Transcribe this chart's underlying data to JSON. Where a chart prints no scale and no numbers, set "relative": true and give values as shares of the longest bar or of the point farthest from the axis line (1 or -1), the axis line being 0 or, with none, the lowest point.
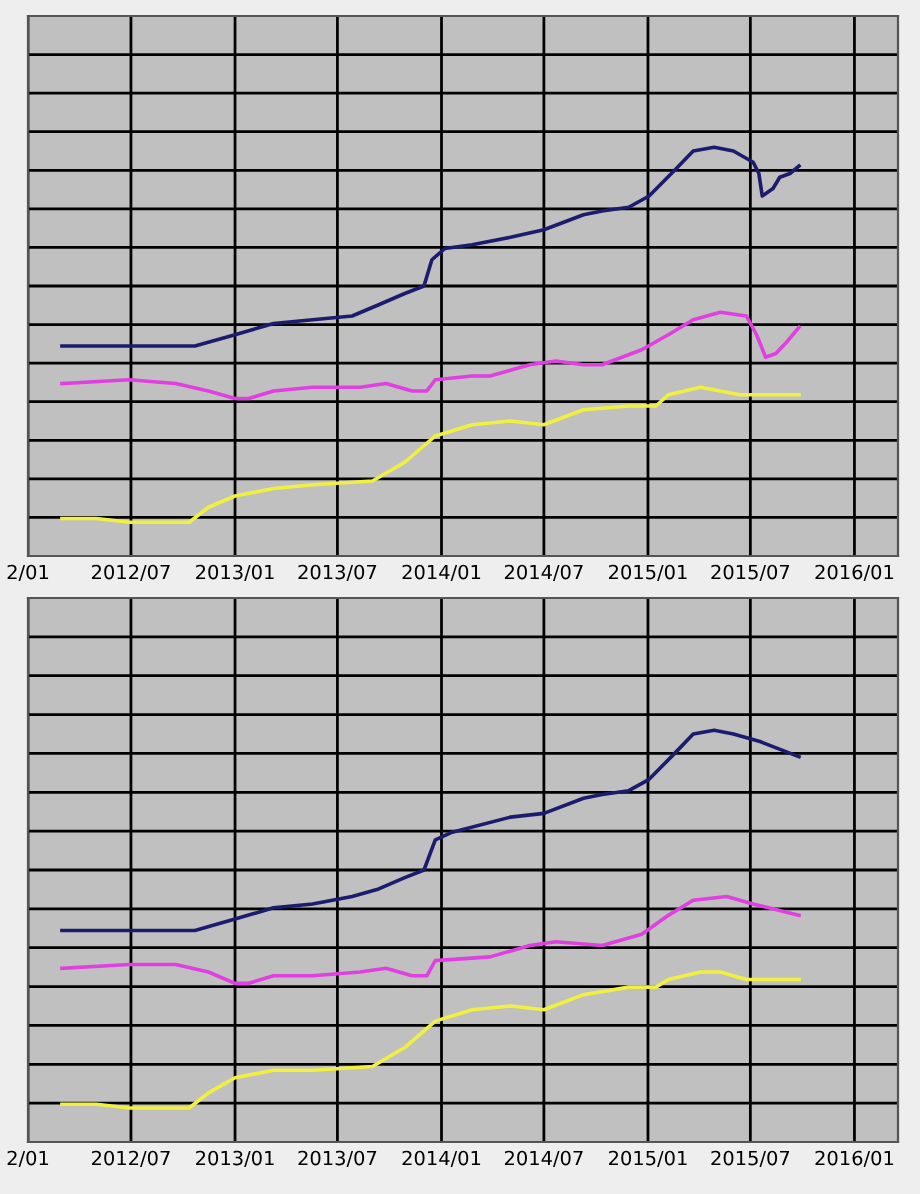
{
  "chart_data": [
    {
      "type": "line",
      "relative": true,
      "grid": true,
      "xlim": [
        "2012-01-01",
        "2016-03-18"
      ],
      "xticks": [
        {
          "value": "2012-01-01",
          "label": "2/01"
        },
        {
          "value": "2012-07-01",
          "label": "2012/07"
        },
        {
          "value": "2013-01-01",
          "label": "2013/01"
        },
        {
          "value": "2013-07-01",
          "label": "2013/07"
        },
        {
          "value": "2014-01-01",
          "label": "2014/01"
        },
        {
          "value": "2014-07-01",
          "label": "2014/07"
        },
        {
          "value": "2015-01-01",
          "label": "2015/01"
        },
        {
          "value": "2015-07-01",
          "label": "2015/07"
        },
        {
          "value": "2016-01-01",
          "label": "2016/01"
        }
      ],
      "series": [
        {
          "color": "#1c1c6e",
          "x": [
            "2012-03-01",
            "2012-10-22",
            "2013-01-01",
            "2013-03-10",
            "2013-05-18",
            "2013-07-27",
            "2013-09-12",
            "2013-10-28",
            "2013-12-01",
            "2013-12-15",
            "2014-01-07",
            "2014-02-24",
            "2014-05-03",
            "2014-07-01",
            "2014-09-09",
            "2014-10-12",
            "2014-11-28",
            "2015-01-03",
            "2015-02-18",
            "2015-03-22",
            "2015-04-28",
            "2015-06-01",
            "2015-07-06",
            "2015-07-16",
            "2015-07-22",
            "2015-08-10",
            "2015-08-22",
            "2015-09-09",
            "2015-09-25"
          ],
          "values": [
            0.47,
            0.47,
            0.5,
            0.53,
            0.54,
            0.55,
            0.58,
            0.61,
            0.63,
            0.7,
            0.73,
            0.74,
            0.76,
            0.78,
            0.82,
            0.83,
            0.84,
            0.87,
            0.94,
            0.99,
            1.0,
            0.99,
            0.96,
            0.93,
            0.87,
            0.89,
            0.92,
            0.93,
            0.95
          ]
        },
        {
          "color": "#e040e0",
          "x": [
            "2012-03-01",
            "2012-06-28",
            "2012-09-18",
            "2012-11-15",
            "2013-01-01",
            "2013-01-25",
            "2013-03-10",
            "2013-05-18",
            "2013-08-10",
            "2013-09-25",
            "2013-11-10",
            "2013-12-06",
            "2013-12-21",
            "2014-02-24",
            "2014-03-28",
            "2014-06-06",
            "2014-07-22",
            "2014-09-09",
            "2014-10-12",
            "2014-12-21",
            "2015-02-06",
            "2015-03-22",
            "2015-05-09",
            "2015-06-24",
            "2015-07-12",
            "2015-07-28",
            "2015-08-15",
            "2015-09-03",
            "2015-09-25"
          ],
          "values": [
            0.37,
            0.38,
            0.37,
            0.35,
            0.33,
            0.33,
            0.35,
            0.36,
            0.36,
            0.37,
            0.35,
            0.35,
            0.38,
            0.39,
            0.39,
            0.42,
            0.43,
            0.42,
            0.42,
            0.46,
            0.5,
            0.54,
            0.56,
            0.55,
            0.5,
            0.44,
            0.45,
            0.48,
            0.52
          ]
        },
        {
          "color": "#f0f040",
          "x": [
            "2012-03-01",
            "2012-05-01",
            "2012-06-28",
            "2012-10-12",
            "2012-11-15",
            "2013-01-01",
            "2013-03-10",
            "2013-05-18",
            "2013-09-01",
            "2013-10-28",
            "2013-12-21",
            "2014-02-24",
            "2014-05-03",
            "2014-07-01",
            "2014-09-09",
            "2014-11-28",
            "2015-01-15",
            "2015-02-06",
            "2015-04-04",
            "2015-05-09",
            "2015-06-12",
            "2015-07-28",
            "2015-09-25"
          ],
          "values": [
            0.01,
            0.01,
            0.0,
            0.0,
            0.04,
            0.07,
            0.09,
            0.1,
            0.11,
            0.16,
            0.23,
            0.26,
            0.27,
            0.26,
            0.3,
            0.31,
            0.31,
            0.34,
            0.36,
            0.35,
            0.34,
            0.34,
            0.34
          ]
        }
      ]
    },
    {
      "type": "line",
      "relative": true,
      "grid": true,
      "xlim": [
        "2012-01-01",
        "2016-03-18"
      ],
      "xticks": [
        {
          "value": "2012-01-01",
          "label": "2/01"
        },
        {
          "value": "2012-07-01",
          "label": "2012/07"
        },
        {
          "value": "2013-01-01",
          "label": "2013/01"
        },
        {
          "value": "2013-07-01",
          "label": "2013/07"
        },
        {
          "value": "2014-01-01",
          "label": "2014/01"
        },
        {
          "value": "2014-07-01",
          "label": "2014/07"
        },
        {
          "value": "2015-01-01",
          "label": "2015/01"
        },
        {
          "value": "2015-07-01",
          "label": "2015/07"
        },
        {
          "value": "2016-01-01",
          "label": "2016/01"
        }
      ],
      "series": [
        {
          "color": "#1c1c6e",
          "x": [
            "2012-03-01",
            "2012-10-22",
            "2013-01-01",
            "2013-03-10",
            "2013-05-18",
            "2013-07-27",
            "2013-09-12",
            "2013-10-28",
            "2013-12-01",
            "2013-12-21",
            "2014-01-20",
            "2014-05-03",
            "2014-07-01",
            "2014-09-09",
            "2014-10-12",
            "2014-11-28",
            "2015-01-03",
            "2015-02-18",
            "2015-03-22",
            "2015-04-28",
            "2015-06-01",
            "2015-07-18",
            "2015-09-25"
          ],
          "values": [
            0.47,
            0.47,
            0.5,
            0.53,
            0.54,
            0.56,
            0.58,
            0.61,
            0.63,
            0.71,
            0.73,
            0.77,
            0.78,
            0.82,
            0.83,
            0.84,
            0.87,
            0.94,
            0.99,
            1.0,
            0.99,
            0.97,
            0.93
          ]
        },
        {
          "color": "#e040e0",
          "x": [
            "2012-03-01",
            "2012-06-28",
            "2012-09-18",
            "2012-11-15",
            "2013-01-01",
            "2013-01-25",
            "2013-03-10",
            "2013-05-18",
            "2013-08-10",
            "2013-09-25",
            "2013-11-10",
            "2013-12-06",
            "2013-12-21",
            "2014-03-28",
            "2014-06-06",
            "2014-07-22",
            "2014-10-12",
            "2014-12-21",
            "2015-02-06",
            "2015-03-22",
            "2015-05-20",
            "2015-07-06",
            "2015-09-25"
          ],
          "values": [
            0.37,
            0.38,
            0.38,
            0.36,
            0.33,
            0.33,
            0.35,
            0.35,
            0.36,
            0.37,
            0.35,
            0.35,
            0.39,
            0.4,
            0.43,
            0.44,
            0.43,
            0.46,
            0.51,
            0.55,
            0.56,
            0.54,
            0.51
          ]
        },
        {
          "color": "#f0f040",
          "x": [
            "2012-03-01",
            "2012-05-01",
            "2012-06-28",
            "2012-10-12",
            "2012-11-15",
            "2013-01-01",
            "2013-03-10",
            "2013-05-18",
            "2013-09-01",
            "2013-10-28",
            "2013-12-21",
            "2014-02-24",
            "2014-05-03",
            "2014-07-01",
            "2014-09-09",
            "2014-11-28",
            "2015-01-15",
            "2015-02-06",
            "2015-04-04",
            "2015-05-09",
            "2015-06-24",
            "2015-09-25"
          ],
          "values": [
            0.01,
            0.01,
            0.0,
            0.0,
            0.04,
            0.08,
            0.1,
            0.1,
            0.11,
            0.16,
            0.23,
            0.26,
            0.27,
            0.26,
            0.3,
            0.32,
            0.32,
            0.34,
            0.36,
            0.36,
            0.34,
            0.34
          ]
        }
      ]
    }
  ]
}
